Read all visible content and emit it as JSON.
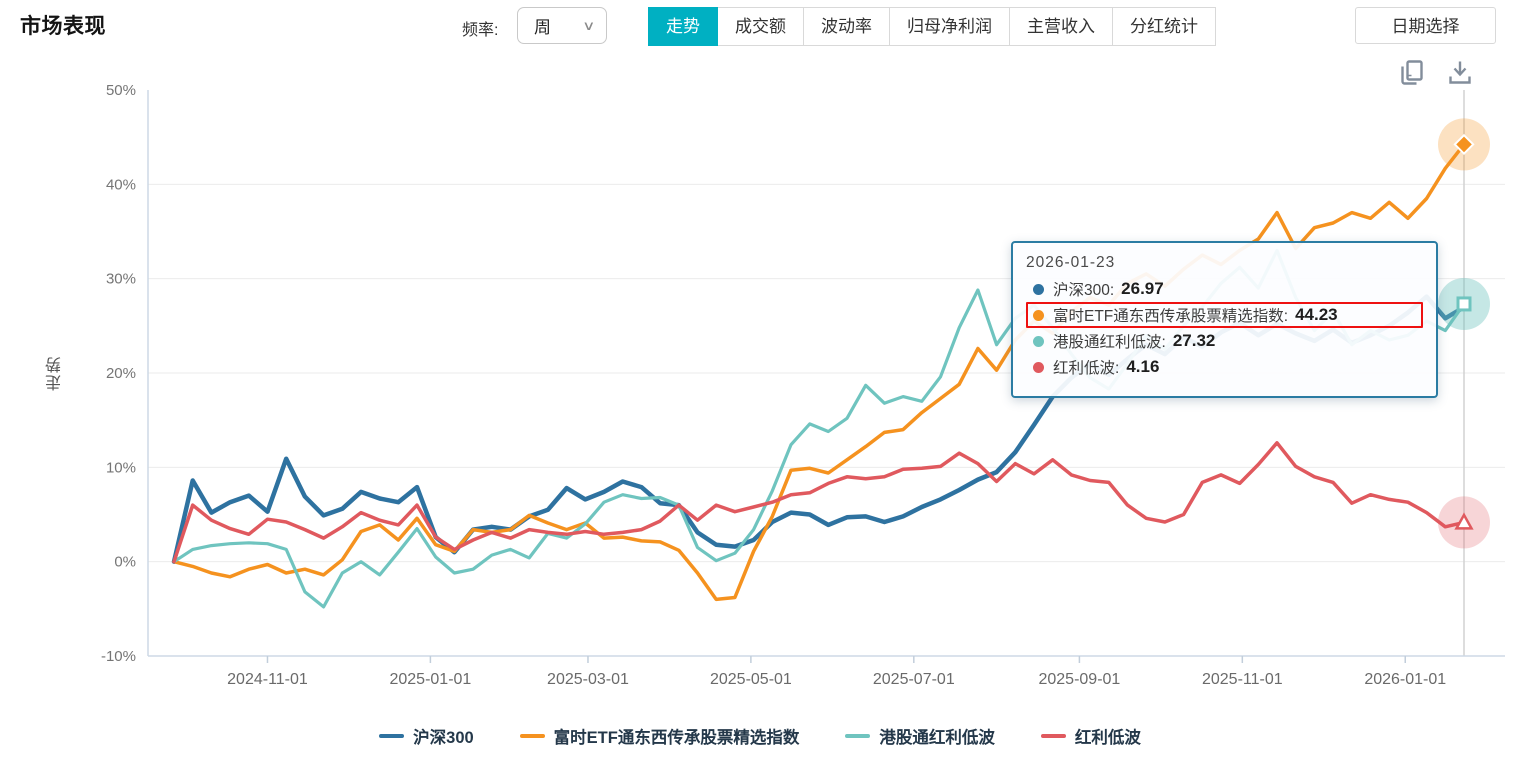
{
  "header": {
    "title": "市场表现",
    "frequency_label": "频率:",
    "frequency_value": "周",
    "tabs": [
      {
        "label": "走势",
        "active": true
      },
      {
        "label": "成交额",
        "active": false
      },
      {
        "label": "波动率",
        "active": false
      },
      {
        "label": "归母净利润",
        "active": false
      },
      {
        "label": "主营收入",
        "active": false
      },
      {
        "label": "分红统计",
        "active": false
      }
    ],
    "date_button": "日期选择"
  },
  "tool_icons": [
    {
      "name": "copy-icon"
    },
    {
      "name": "download-icon"
    }
  ],
  "tooltip": {
    "date": "2026-01-23",
    "rows": [
      {
        "name": "沪深300:",
        "value": "26.97",
        "color": "#2e72a0",
        "highlighted": false
      },
      {
        "name": "富时ETF通东西传承股票精选指数:",
        "value": "44.23",
        "color": "#f5921f",
        "highlighted": true
      },
      {
        "name": "港股通红利低波:",
        "value": "27.32",
        "color": "#6fc4bf",
        "highlighted": false
      },
      {
        "name": "红利低波:",
        "value": "4.16",
        "color": "#e0595e",
        "highlighted": false
      }
    ]
  },
  "legend": {
    "items": [
      {
        "label": "沪深300",
        "color": "#2e72a0"
      },
      {
        "label": "富时ETF通东西传承股票精选指数",
        "color": "#f5921f"
      },
      {
        "label": "港股通红利低波",
        "color": "#6fc4bf"
      },
      {
        "label": "红利低波",
        "color": "#e0595e"
      }
    ]
  },
  "chart_data": {
    "type": "line",
    "ylabel": "走势",
    "frequency": "周",
    "x_start_date": "2024-09-27",
    "x_end_date": "2026-01-23",
    "weeks_total": 69,
    "ylim": [
      -10,
      50
    ],
    "grid": true,
    "legend_position": "bottom",
    "y_ticks": [
      {
        "value": 50,
        "label": "50%",
        "grid": false
      },
      {
        "value": 40,
        "label": "40%",
        "grid": true
      },
      {
        "value": 30,
        "label": "30%",
        "grid": true
      },
      {
        "value": 20,
        "label": "20%",
        "grid": true
      },
      {
        "value": 10,
        "label": "10%",
        "grid": true
      },
      {
        "value": 0,
        "label": "0%",
        "grid": true
      },
      {
        "value": -10,
        "label": "-10%",
        "grid": false
      }
    ],
    "x_ticks": [
      {
        "label": "2024-11-01",
        "week": 5
      },
      {
        "label": "2025-01-01",
        "week": 13.714
      },
      {
        "label": "2025-03-01",
        "week": 22.143
      },
      {
        "label": "2025-05-01",
        "week": 30.857
      },
      {
        "label": "2025-07-01",
        "week": 39.571
      },
      {
        "label": "2025-09-01",
        "week": 48.429
      },
      {
        "label": "2025-11-01",
        "week": 57.143
      },
      {
        "label": "2026-01-01",
        "week": 65.857
      }
    ],
    "crosshair_week": 69,
    "series": [
      {
        "key": "hs300",
        "name": "沪深300",
        "color": "#2e72a0",
        "width": 4.5,
        "end_marker": {
          "shape": "none"
        },
        "end_value": 26.97,
        "values": [
          0,
          8.6,
          5.2,
          6.3,
          7.0,
          5.3,
          10.9,
          6.9,
          4.9,
          5.6,
          7.4,
          6.7,
          6.3,
          7.9,
          2.6,
          1.0,
          3.4,
          3.7,
          3.4,
          4.8,
          5.5,
          7.8,
          6.6,
          7.4,
          8.5,
          7.9,
          6.2,
          6.0,
          3.1,
          1.8,
          1.6,
          2.3,
          4.2,
          5.2,
          5.0,
          3.9,
          4.7,
          4.8,
          4.2,
          4.8,
          5.8,
          6.6,
          7.6,
          8.7,
          9.5,
          11.6,
          14.5,
          17.5,
          19.5,
          21.0,
          19.8,
          21.5,
          23.0,
          22.0,
          23.8,
          22.8,
          24.3,
          25.3,
          24.0,
          25.2,
          24.2,
          23.4,
          24.6,
          23.2,
          24.0,
          25.0,
          26.4,
          28.1,
          25.8,
          26.97
        ]
      },
      {
        "key": "ftse",
        "name": "富时ETF通东西传承股票精选指数",
        "color": "#f5921f",
        "width": 3.5,
        "end_marker": {
          "shape": "diamond",
          "halo": "rgba(245,146,31,0.28)"
        },
        "end_value": 44.23,
        "values": [
          0,
          -0.5,
          -1.2,
          -1.6,
          -0.8,
          -0.3,
          -1.2,
          -0.8,
          -1.4,
          0.2,
          3.2,
          3.9,
          2.3,
          4.6,
          1.8,
          1.1,
          3.4,
          3.1,
          3.4,
          4.9,
          4.1,
          3.4,
          4.1,
          2.5,
          2.6,
          2.2,
          2.1,
          1.2,
          -1.2,
          -4.0,
          -3.8,
          1.1,
          4.8,
          9.7,
          9.9,
          9.4,
          10.8,
          12.2,
          13.7,
          14.0,
          15.8,
          17.3,
          18.8,
          22.6,
          20.3,
          23.5,
          25.5,
          24.2,
          26.5,
          28.0,
          27.2,
          29.5,
          30.5,
          29.2,
          31.0,
          32.5,
          31.5,
          33.0,
          34.2,
          37.0,
          33.2,
          35.4,
          35.9,
          37.0,
          36.4,
          38.1,
          36.4,
          38.5,
          41.7,
          44.23
        ]
      },
      {
        "key": "hkdiv",
        "name": "港股通红利低波",
        "color": "#6fc4bf",
        "width": 3.2,
        "end_marker": {
          "shape": "square",
          "halo": "rgba(111,196,191,0.4)"
        },
        "end_value": 27.32,
        "values": [
          0,
          1.3,
          1.7,
          1.9,
          2.0,
          1.9,
          1.3,
          -3.2,
          -4.8,
          -1.2,
          0.0,
          -1.4,
          1.0,
          3.5,
          0.5,
          -1.2,
          -0.8,
          0.7,
          1.3,
          0.4,
          3.0,
          2.5,
          4.0,
          6.3,
          7.1,
          6.7,
          6.8,
          6.0,
          1.5,
          0.1,
          0.9,
          3.4,
          7.5,
          12.4,
          14.6,
          13.8,
          15.2,
          18.7,
          16.8,
          17.5,
          17.0,
          19.6,
          24.8,
          28.8,
          23.0,
          25.8,
          27.2,
          24.8,
          22.0,
          19.5,
          18.3,
          21.0,
          24.0,
          22.5,
          25.0,
          27.0,
          29.5,
          31.2,
          29.0,
          33.0,
          28.0,
          24.5,
          26.5,
          23.0,
          24.5,
          23.5,
          24.0,
          25.5,
          24.5,
          27.32
        ]
      },
      {
        "key": "div",
        "name": "红利低波",
        "color": "#e0595e",
        "width": 3.5,
        "end_marker": {
          "shape": "triangle",
          "halo": "rgba(224,89,94,0.25)"
        },
        "end_value": 4.16,
        "values": [
          0,
          6.0,
          4.4,
          3.5,
          2.9,
          4.5,
          4.2,
          3.4,
          2.5,
          3.7,
          5.2,
          4.4,
          3.9,
          6.0,
          2.6,
          1.3,
          2.3,
          3.1,
          2.5,
          3.4,
          3.1,
          2.9,
          3.2,
          2.9,
          3.1,
          3.4,
          4.3,
          6.0,
          4.4,
          6.0,
          5.3,
          5.8,
          6.3,
          7.1,
          7.3,
          8.3,
          9.0,
          8.8,
          9.0,
          9.8,
          9.9,
          10.1,
          11.5,
          10.4,
          8.5,
          10.4,
          9.3,
          10.8,
          9.2,
          8.6,
          8.4,
          6.0,
          4.6,
          4.2,
          5.0,
          8.4,
          9.2,
          8.3,
          10.3,
          12.6,
          10.1,
          9.0,
          8.4,
          6.2,
          7.1,
          6.6,
          6.3,
          5.2,
          3.7,
          4.16
        ]
      }
    ]
  }
}
